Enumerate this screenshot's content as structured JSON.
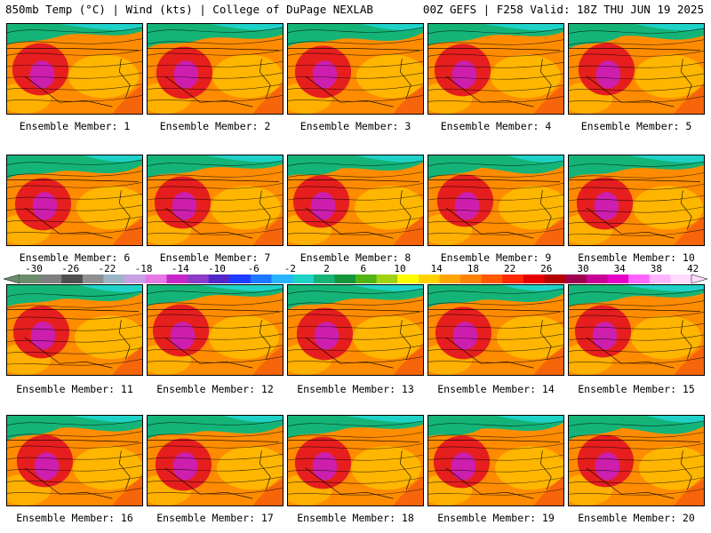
{
  "header": {
    "left": "850mb Temp (°C) | Wind (kts) | College of DuPage NEXLAB",
    "right": "00Z GEFS | F258 Valid: 18Z THU JUN 19 2025"
  },
  "members": [
    "Ensemble Member: 1",
    "Ensemble Member: 2",
    "Ensemble Member: 3",
    "Ensemble Member: 4",
    "Ensemble Member: 5",
    "Ensemble Member: 6",
    "Ensemble Member: 7",
    "Ensemble Member: 8",
    "Ensemble Member: 9",
    "Ensemble Member: 10",
    "Ensemble Member: 11",
    "Ensemble Member: 12",
    "Ensemble Member: 13",
    "Ensemble Member: 14",
    "Ensemble Member: 15",
    "Ensemble Member: 16",
    "Ensemble Member: 17",
    "Ensemble Member: 18",
    "Ensemble Member: 19",
    "Ensemble Member: 20"
  ],
  "colorbar": {
    "ticks": [
      "-30",
      "-26",
      "-22",
      "-18",
      "-14",
      "-10",
      "-6",
      "-2",
      "2",
      "6",
      "10",
      "14",
      "18",
      "22",
      "26",
      "30",
      "34",
      "38",
      "42"
    ],
    "colors": [
      "#6b8d6b",
      "#7f7f7f",
      "#4f4f4f",
      "#8f8f8f",
      "#9cb4c8",
      "#c8a0e6",
      "#e678e6",
      "#c828c8",
      "#8c3cc8",
      "#5028c8",
      "#1e3cff",
      "#1e78ff",
      "#28b4ff",
      "#1ed2c8",
      "#14b478",
      "#14963c",
      "#50b414",
      "#a0d214",
      "#ffff00",
      "#ffd200",
      "#ffa500",
      "#ff8200",
      "#ff5a00",
      "#ff2800",
      "#e60000",
      "#b40000",
      "#a00050",
      "#c80096",
      "#e600c8",
      "#ff64ff",
      "#ffb4ff",
      "#ffdcff"
    ]
  },
  "palette": {
    "ocean": "#5a8cd2",
    "hot": "#e61e1e",
    "warm": "#ff8c00",
    "mild": "#ffc800",
    "cool": "#14b478",
    "cold": "#1ed2c8",
    "extreme": "#c81ec8"
  }
}
